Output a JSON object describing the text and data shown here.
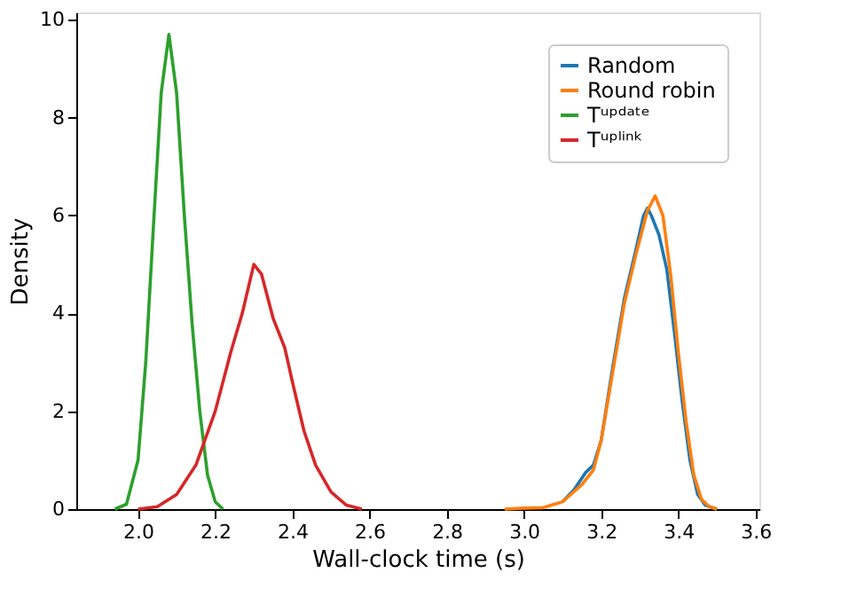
{
  "chart_data": {
    "type": "line",
    "xlabel": "Wall-clock time (s)",
    "ylabel": "Density",
    "xlim": [
      1.84,
      3.61
    ],
    "xticks": [
      {
        "value": 2.0,
        "label": "2.0"
      },
      2.2,
      2.4,
      2.6,
      2.8,
      {
        "value": 3.0,
        "label": "3.0"
      },
      3.2,
      3.4,
      3.6
    ],
    "ylim": [
      0,
      10.15
    ],
    "yticks": [
      0,
      2,
      4,
      6,
      8,
      10
    ],
    "grid": false,
    "legend": "top right",
    "line_style": "solid",
    "marker": "none",
    "series": [
      {
        "name": "Random",
        "color": "#1f77b4",
        "x": [
          3.1,
          3.13,
          3.16,
          3.18,
          3.2,
          3.23,
          3.26,
          3.29,
          3.31,
          3.32,
          3.33,
          3.35,
          3.37,
          3.39,
          3.41,
          3.43,
          3.45,
          3.47,
          3.5
        ],
        "values": [
          0.15,
          0.4,
          0.75,
          0.9,
          1.4,
          2.9,
          4.3,
          5.3,
          6.0,
          6.15,
          6.0,
          5.6,
          4.9,
          3.6,
          2.2,
          1.0,
          0.3,
          0.08,
          0
        ]
      },
      {
        "name": "Round robin",
        "color": "#ff7f0e",
        "x": [
          2.95,
          3.0,
          3.05,
          3.1,
          3.15,
          3.18,
          3.2,
          3.23,
          3.26,
          3.29,
          3.32,
          3.34,
          3.36,
          3.38,
          3.4,
          3.42,
          3.44,
          3.46,
          3.48,
          3.5
        ],
        "values": [
          0,
          0.02,
          0.03,
          0.15,
          0.5,
          0.8,
          1.4,
          2.8,
          4.2,
          5.2,
          6.1,
          6.4,
          6.0,
          4.8,
          3.2,
          1.8,
          0.7,
          0.2,
          0.05,
          0
        ]
      },
      {
        "name": "Tᵘᵖᵈᵃᵗᵉ",
        "color": "#2ca02c",
        "x": [
          1.94,
          1.97,
          2.0,
          2.02,
          2.04,
          2.06,
          2.08,
          2.1,
          2.12,
          2.14,
          2.16,
          2.18,
          2.2,
          2.22
        ],
        "values": [
          0,
          0.1,
          1.0,
          3.0,
          5.8,
          8.5,
          9.7,
          8.5,
          6.0,
          3.8,
          2.0,
          0.7,
          0.15,
          0
        ]
      },
      {
        "name": "Tᵘᵖˡⁱⁿᵏ",
        "color": "#d62728",
        "x": [
          2.0,
          2.05,
          2.1,
          2.15,
          2.2,
          2.24,
          2.27,
          2.3,
          2.32,
          2.35,
          2.38,
          2.4,
          2.43,
          2.46,
          2.5,
          2.54,
          2.58
        ],
        "values": [
          0,
          0.05,
          0.3,
          0.9,
          2.0,
          3.2,
          4.0,
          5.0,
          4.8,
          3.9,
          3.3,
          2.6,
          1.6,
          0.9,
          0.35,
          0.08,
          0
        ]
      }
    ]
  }
}
